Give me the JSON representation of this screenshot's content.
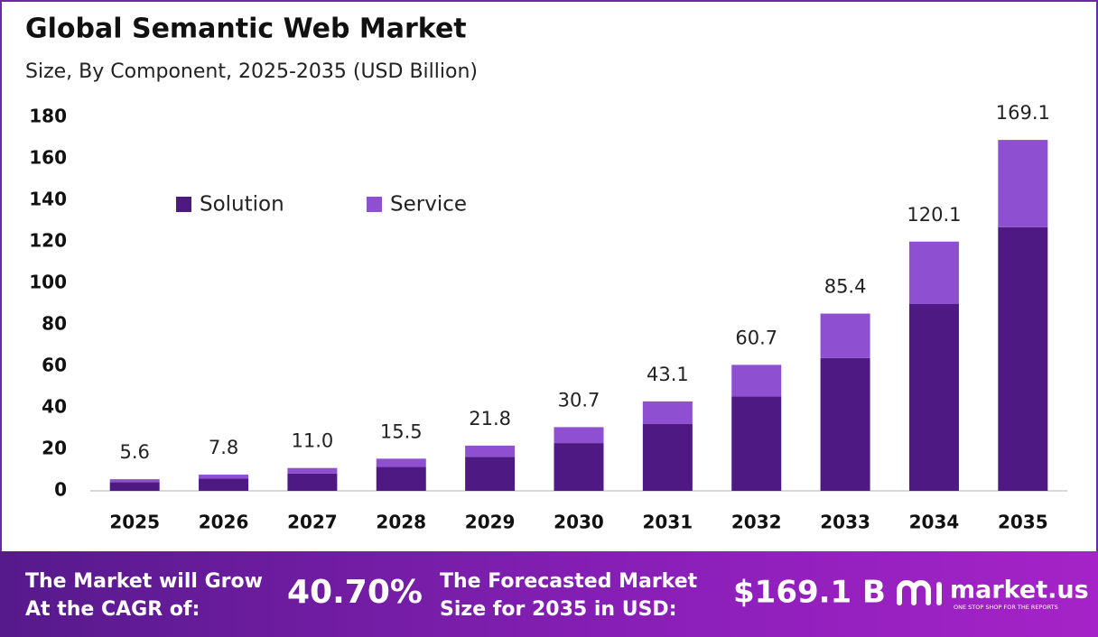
{
  "chart_data": {
    "type": "bar",
    "stacked": true,
    "title": "Global Semantic Web Market",
    "subtitle": "Size, By Component, 2025-2035 (USD Billion)",
    "categories": [
      "2025",
      "2026",
      "2027",
      "2028",
      "2029",
      "2030",
      "2031",
      "2032",
      "2033",
      "2034",
      "2035"
    ],
    "series": [
      {
        "name": "Solution",
        "color": "#4e1983",
        "values": [
          4.2,
          5.9,
          8.3,
          11.6,
          16.4,
          23.0,
          32.3,
          45.5,
          64.0,
          90.0,
          127.0
        ]
      },
      {
        "name": "Service",
        "color": "#8e4fd0",
        "values": [
          1.4,
          1.9,
          2.7,
          3.9,
          5.4,
          7.7,
          10.8,
          15.2,
          21.4,
          30.1,
          42.1
        ]
      }
    ],
    "totals": {
      "values": [
        5.6,
        7.8,
        11.0,
        15.5,
        21.8,
        30.7,
        43.1,
        60.7,
        85.4,
        120.1,
        169.1
      ],
      "value_labels": [
        "5.6",
        "7.8",
        "11.0",
        "15.5",
        "21.8",
        "30.7",
        "43.1",
        "60.7",
        "85.4",
        "120.1",
        "169.1"
      ]
    },
    "ylim": [
      0,
      180
    ],
    "yticks": [
      0,
      20,
      40,
      60,
      80,
      100,
      120,
      140,
      160,
      180
    ],
    "grid": false,
    "legend": "top-left"
  },
  "footer": {
    "cagr_text": [
      "The Market will Grow",
      "At the CAGR of:"
    ],
    "cagr": "40.70%",
    "forecast_text": [
      "The Forecasted Market",
      "Size for 2035 in USD:"
    ],
    "forecast": "$169.1 B",
    "brand": "market.us",
    "tagline": "ONE STOP SHOP FOR THE REPORTS"
  }
}
